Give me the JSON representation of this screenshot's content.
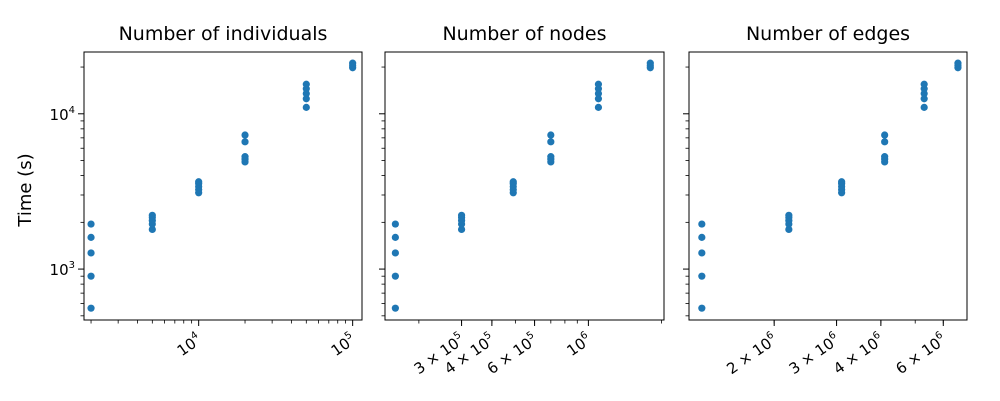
{
  "figure": {
    "ylabel": "Time (s)"
  },
  "chart_data": [
    {
      "type": "scatter",
      "title": "Number of individuals",
      "xlabel": "",
      "ylabel": "Time (s)",
      "xscale": "log",
      "yscale": "log",
      "xlim": [
        1800,
        115000
      ],
      "ylim": [
        470,
        25000
      ],
      "xticks": [
        {
          "value": 10000,
          "label": "10",
          "sup": "4"
        },
        {
          "value": 100000,
          "label": "10",
          "sup": "5"
        }
      ],
      "yticks": [
        {
          "value": 1000,
          "label": "10",
          "sup": "3"
        },
        {
          "value": 10000,
          "label": "10",
          "sup": "4"
        }
      ],
      "grid": false,
      "color": "#1f77b4",
      "points": [
        [
          2000,
          560
        ],
        [
          2000,
          900
        ],
        [
          2000,
          1270
        ],
        [
          2000,
          1600
        ],
        [
          2000,
          1950
        ],
        [
          5000,
          1800
        ],
        [
          5000,
          1950
        ],
        [
          5000,
          2050
        ],
        [
          5000,
          2150
        ],
        [
          5000,
          2220
        ],
        [
          10000,
          3100
        ],
        [
          10000,
          3250
        ],
        [
          10000,
          3400
        ],
        [
          10000,
          3550
        ],
        [
          10000,
          3650
        ],
        [
          20000,
          4900
        ],
        [
          20000,
          5100
        ],
        [
          20000,
          5300
        ],
        [
          20000,
          6600
        ],
        [
          20000,
          7300
        ],
        [
          50000,
          11000
        ],
        [
          50000,
          12500
        ],
        [
          50000,
          13500
        ],
        [
          50000,
          14500
        ],
        [
          50000,
          15500
        ],
        [
          100000,
          19800
        ],
        [
          100000,
          20500
        ],
        [
          100000,
          21200
        ]
      ]
    },
    {
      "type": "scatter",
      "title": "Number of nodes",
      "xlabel": "",
      "ylabel": "",
      "xscale": "log",
      "yscale": "log",
      "xlim": [
        145000,
        2050000
      ],
      "ylim": [
        470,
        25000
      ],
      "xticks": [
        {
          "value": 300000,
          "label": "3 × 10",
          "sup": "5"
        },
        {
          "value": 400000,
          "label": "4 × 10",
          "sup": "5"
        },
        {
          "value": 600000,
          "label": "6 × 10",
          "sup": "5"
        },
        {
          "value": 1000000,
          "label": "10",
          "sup": "6"
        }
      ],
      "yticks": [
        {
          "value": 1000,
          "label": "",
          "sup": ""
        },
        {
          "value": 10000,
          "label": "",
          "sup": ""
        }
      ],
      "grid": false,
      "color": "#1f77b4",
      "points": [
        [
          160000,
          560
        ],
        [
          160000,
          900
        ],
        [
          160000,
          1270
        ],
        [
          160000,
          1600
        ],
        [
          160000,
          1950
        ],
        [
          300000,
          1800
        ],
        [
          300000,
          1950
        ],
        [
          300000,
          2050
        ],
        [
          300000,
          2150
        ],
        [
          300000,
          2220
        ],
        [
          490000,
          3100
        ],
        [
          490000,
          3250
        ],
        [
          490000,
          3400
        ],
        [
          490000,
          3550
        ],
        [
          490000,
          3650
        ],
        [
          700000,
          4900
        ],
        [
          700000,
          5100
        ],
        [
          700000,
          5300
        ],
        [
          700000,
          6600
        ],
        [
          700000,
          7300
        ],
        [
          1100000,
          11000
        ],
        [
          1100000,
          12500
        ],
        [
          1100000,
          13500
        ],
        [
          1100000,
          14500
        ],
        [
          1100000,
          15500
        ],
        [
          1800000,
          19800
        ],
        [
          1800000,
          20500
        ],
        [
          1800000,
          21200
        ]
      ]
    },
    {
      "type": "scatter",
      "title": "Number of edges",
      "xlabel": "",
      "ylabel": "",
      "xscale": "log",
      "yscale": "log",
      "xlim": [
        1150000,
        7000000
      ],
      "ylim": [
        470,
        25000
      ],
      "xticks": [
        {
          "value": 2000000,
          "label": "2 × 10",
          "sup": "6"
        },
        {
          "value": 3000000,
          "label": "3 × 10",
          "sup": "6"
        },
        {
          "value": 4000000,
          "label": "4 × 10",
          "sup": "6"
        },
        {
          "value": 6000000,
          "label": "6 × 10",
          "sup": "6"
        }
      ],
      "yticks": [
        {
          "value": 1000,
          "label": "",
          "sup": ""
        },
        {
          "value": 10000,
          "label": "",
          "sup": ""
        }
      ],
      "grid": false,
      "color": "#1f77b4",
      "points": [
        [
          1250000,
          560
        ],
        [
          1250000,
          900
        ],
        [
          1250000,
          1270
        ],
        [
          1250000,
          1600
        ],
        [
          1250000,
          1950
        ],
        [
          2200000,
          1800
        ],
        [
          2200000,
          1950
        ],
        [
          2200000,
          2050
        ],
        [
          2200000,
          2150
        ],
        [
          2200000,
          2220
        ],
        [
          3100000,
          3100
        ],
        [
          3100000,
          3250
        ],
        [
          3100000,
          3400
        ],
        [
          3100000,
          3550
        ],
        [
          3100000,
          3650
        ],
        [
          4100000,
          4900
        ],
        [
          4100000,
          5100
        ],
        [
          4100000,
          5300
        ],
        [
          4100000,
          6600
        ],
        [
          4100000,
          7300
        ],
        [
          5300000,
          11000
        ],
        [
          5300000,
          12500
        ],
        [
          5300000,
          13500
        ],
        [
          5300000,
          14500
        ],
        [
          5300000,
          15500
        ],
        [
          6600000,
          19800
        ],
        [
          6600000,
          20500
        ],
        [
          6600000,
          21200
        ]
      ]
    }
  ]
}
